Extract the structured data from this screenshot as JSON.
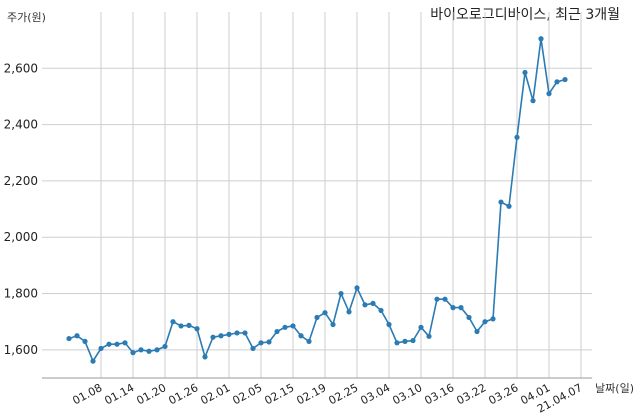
{
  "chart_data": {
    "type": "line",
    "title": "바이오로그디바이스, 최근 3개월",
    "ylabel": "주가(원)",
    "xlabel": "날짜(일)",
    "ylim": [
      1500,
      2800
    ],
    "yticks": [
      1600,
      1800,
      2000,
      2200,
      2400,
      2600
    ],
    "ytick_labels": [
      "1,600",
      "1,800",
      "2,000",
      "2,200",
      "2,400",
      "2,600"
    ],
    "xtick_labels": [
      "01.08",
      "01.14",
      "01.20",
      "01.26",
      "02.01",
      "02.05",
      "02.15",
      "02.19",
      "02.25",
      "03.04",
      "03.10",
      "03.16",
      "03.22",
      "03.26",
      "04.01",
      "21.04.07"
    ],
    "xtick_index": [
      4,
      8,
      12,
      16,
      20,
      24,
      28,
      32,
      36,
      40,
      44,
      48,
      52,
      56,
      60,
      64
    ],
    "grid": true,
    "color": "#2b7bb4",
    "series": [
      {
        "values": [
          1640,
          1650,
          1630,
          1560,
          1605,
          1620,
          1620,
          1625,
          1590,
          1600,
          1595,
          1600,
          1612,
          1700,
          1685,
          1687,
          1675,
          1575,
          1645,
          1650,
          1655,
          1660,
          1660,
          1605,
          1625,
          1628,
          1665,
          1680,
          1685,
          1650,
          1630,
          1715,
          1732,
          1690,
          1800,
          1735,
          1820,
          1760,
          1765,
          1740,
          1690,
          1625,
          1630,
          1633,
          1680,
          1648,
          1780,
          1780,
          1750,
          1750,
          1715,
          1665,
          1700,
          1710,
          2125,
          2110,
          2355,
          2585,
          2485,
          2705,
          2510,
          2552,
          2560
        ]
      }
    ]
  }
}
